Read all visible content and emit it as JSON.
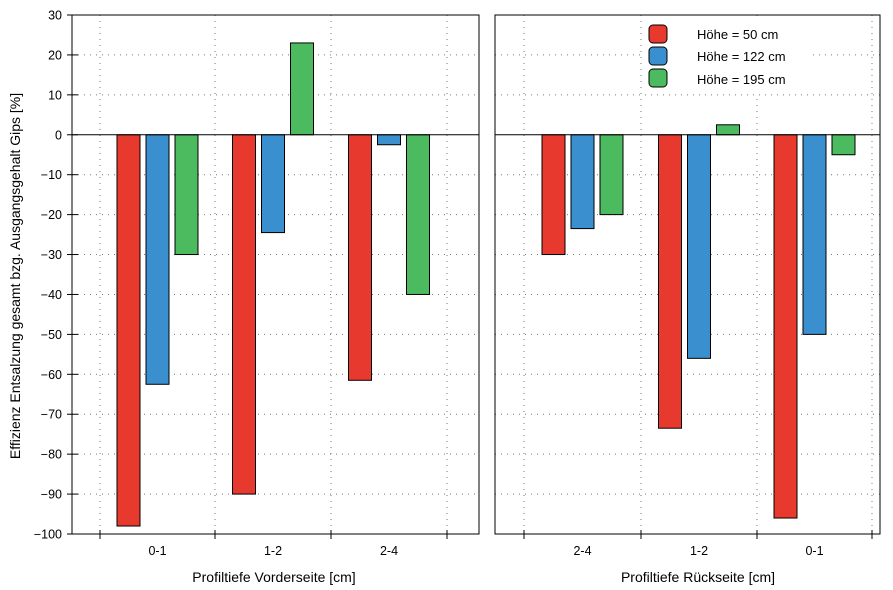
{
  "chart_data": {
    "type": "bar",
    "ylabel": "Effizienz Entsalzung gesamt bzg. Ausgangsgehalt Gips [%]",
    "ylim": [
      -100,
      30
    ],
    "yticks": [
      30,
      20,
      10,
      0,
      -10,
      -20,
      -30,
      -40,
      -50,
      -60,
      -70,
      -80,
      -90,
      -100
    ],
    "ytick_labels": [
      "30",
      "20",
      "10",
      "0",
      "−10",
      "−20",
      "−30",
      "−40",
      "−50",
      "−60",
      "−70",
      "−80",
      "−90",
      "−100"
    ],
    "grid": "dotted",
    "legend_position": "top-right",
    "series_colors": [
      "#e8392e",
      "#3a8fcf",
      "#4cba5f"
    ],
    "legend": [
      "Höhe = 50 cm",
      "Höhe = 122 cm",
      "Höhe = 195 cm"
    ],
    "panels": [
      {
        "xlabel": "Profiltiefe Vorderseite [cm]",
        "categories": [
          "0-1",
          "1-2",
          "2-4"
        ],
        "series": [
          {
            "name": "Höhe = 50 cm",
            "values": [
              -98,
              -90,
              -61.5
            ]
          },
          {
            "name": "Höhe = 122 cm",
            "values": [
              -62.5,
              -24.5,
              -2.5
            ]
          },
          {
            "name": "Höhe = 195 cm",
            "values": [
              -30,
              23,
              -40
            ]
          }
        ]
      },
      {
        "xlabel": "Profiltiefe Rückseite [cm]",
        "categories": [
          "2-4",
          "1-2",
          "0-1"
        ],
        "series": [
          {
            "name": "Höhe = 50 cm",
            "values": [
              -30,
              -73.5,
              -96
            ]
          },
          {
            "name": "Höhe = 122 cm",
            "values": [
              -23.5,
              -56,
              -50
            ]
          },
          {
            "name": "Höhe = 195 cm",
            "values": [
              -20,
              2.5,
              -5
            ]
          }
        ]
      }
    ]
  }
}
